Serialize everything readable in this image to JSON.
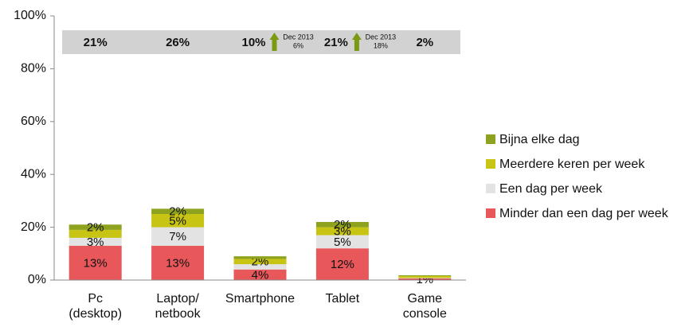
{
  "chart_data": {
    "type": "stacked_bar",
    "categories": [
      [
        "Pc",
        "(desktop)"
      ],
      [
        "Laptop/",
        "netbook"
      ],
      [
        "Smartphone"
      ],
      [
        "Tablet"
      ],
      [
        "Game",
        "console"
      ]
    ],
    "series": [
      {
        "name": "Minder dan een dag per week",
        "color": "#e8575a",
        "values": [
          13,
          13,
          4,
          12,
          0.6
        ],
        "value_labels": [
          "13%",
          "13%",
          "4%",
          "12%",
          "1%"
        ]
      },
      {
        "name": "Een dag per week",
        "color": "#e3e3e3",
        "values": [
          3,
          7,
          2,
          5,
          0.2
        ],
        "value_labels": [
          "3%",
          "7%",
          null,
          "5%",
          null
        ]
      },
      {
        "name": "Meerdere keren per week",
        "color": "#c8c414",
        "values": [
          3,
          5,
          2,
          3,
          0.7
        ],
        "value_labels": [
          null,
          "5%",
          "2%",
          "3%",
          null
        ]
      },
      {
        "name": "Bijna elke dag",
        "color": "#8ea21f",
        "values": [
          2,
          2,
          1,
          2,
          0.3
        ],
        "value_labels": [
          "2%",
          "2%",
          null,
          "2%",
          null
        ]
      }
    ],
    "total_labels": [
      "21%",
      "26%",
      "10%",
      "21%",
      "2%"
    ],
    "annotations": [
      null,
      null,
      [
        "Dec 2013",
        "6%"
      ],
      [
        "Dec 2013",
        "18%"
      ],
      null
    ],
    "ylim": [
      0,
      100
    ],
    "yticks": [
      {
        "value": 0,
        "label": "0%"
      },
      {
        "value": 20,
        "label": "20%"
      },
      {
        "value": 40,
        "label": "40%"
      },
      {
        "value": 60,
        "label": "60%"
      },
      {
        "value": 80,
        "label": "80%"
      },
      {
        "value": 100,
        "label": "100%"
      }
    ],
    "legend": "right"
  }
}
